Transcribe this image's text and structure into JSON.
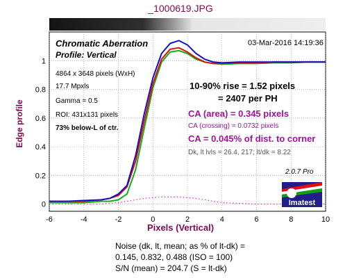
{
  "file_title": "_1000619.JPG",
  "title": "Chromatic Aberration",
  "subtitle": "Profile: Vertical",
  "timestamp": "03-Mar-2016 14:19:36",
  "info_left": [
    "4864 x 3648 pixels (WxH)",
    "17.7 Mpxls",
    "Gamma = 0.5",
    "ROI: 431x131 pixels"
  ],
  "info_left_bold": "73% below-L of ctr.",
  "results": {
    "rise_line1": "10-90% rise = 1.52 pixels",
    "rise_line2": "= 2407 per PH",
    "ca_area": "CA (area) = 0.345 pixels",
    "ca_crossing": "CA (crossing) = 0.0732 pixels",
    "ca_percent": "CA = 0.045% of dist. to corner",
    "levels": "Dk, lt lvls = 26.4, 217;  lt/dk = 8.22"
  },
  "version": "2.0.7  Pro",
  "logo_text": "Imatest",
  "noise": {
    "line1": "Noise (dk, lt, mean; as % of lt-dk) =",
    "line2": "0.145,  0.832,  0.488  (ISO =  100)",
    "line3": "S/N (mean) = 204.7  (S = lt-dk)"
  },
  "colors": {
    "title": "#7a0a52",
    "ca_text": "#a0129a",
    "red": "#e01010",
    "green": "#10b010",
    "blue": "#1010d0",
    "magenta": "#e020e0"
  },
  "chart_data": {
    "type": "line",
    "xlabel": "Pixels (Vertical)",
    "ylabel": "Edge profile",
    "xlim": [
      -6,
      10
    ],
    "ylim": [
      -0.05,
      1.2
    ],
    "x_ticks": [
      -6,
      -4,
      -2,
      0,
      2,
      4,
      6,
      8,
      10
    ],
    "y_ticks": [
      0,
      0.2,
      0.4,
      0.6,
      0.8,
      1
    ],
    "grid": true,
    "x": [
      -6,
      -5,
      -4,
      -3,
      -2.5,
      -2,
      -1.5,
      -1,
      -0.5,
      0,
      0.5,
      1,
      1.5,
      2,
      2.5,
      3,
      3.5,
      4,
      5,
      6,
      7,
      8,
      9,
      10
    ],
    "series": [
      {
        "color": "red",
        "values": [
          0.02,
          0.02,
          0.02,
          0.03,
          0.04,
          0.06,
          0.12,
          0.3,
          0.58,
          0.84,
          1.01,
          1.08,
          1.09,
          1.06,
          1.02,
          0.99,
          0.98,
          0.98,
          0.985,
          0.985,
          0.99,
          0.99,
          0.99,
          0.99
        ]
      },
      {
        "color": "green",
        "values": [
          0.01,
          0.01,
          0.01,
          0.02,
          0.02,
          0.03,
          0.07,
          0.24,
          0.53,
          0.81,
          0.99,
          1.06,
          1.07,
          1.05,
          1.01,
          0.99,
          0.98,
          0.975,
          0.98,
          0.98,
          0.985,
          0.985,
          0.99,
          0.99
        ]
      },
      {
        "color": "blue",
        "values": [
          0.02,
          0.02,
          0.025,
          0.03,
          0.04,
          0.07,
          0.13,
          0.34,
          0.63,
          0.88,
          1.05,
          1.12,
          1.14,
          1.11,
          1.05,
          1.01,
          0.99,
          0.985,
          0.99,
          0.99,
          0.99,
          0.99,
          0.99,
          0.99
        ]
      },
      {
        "color": "magenta",
        "dotted": true,
        "values": [
          0.0,
          0.0,
          0.0,
          0.0,
          0.005,
          0.01,
          0.02,
          0.03,
          0.04,
          0.045,
          0.05,
          0.05,
          0.05,
          0.045,
          0.04,
          0.03,
          0.02,
          0.01,
          0.005,
          0.0,
          0.0,
          0.0,
          0.0,
          0.0
        ]
      }
    ]
  }
}
